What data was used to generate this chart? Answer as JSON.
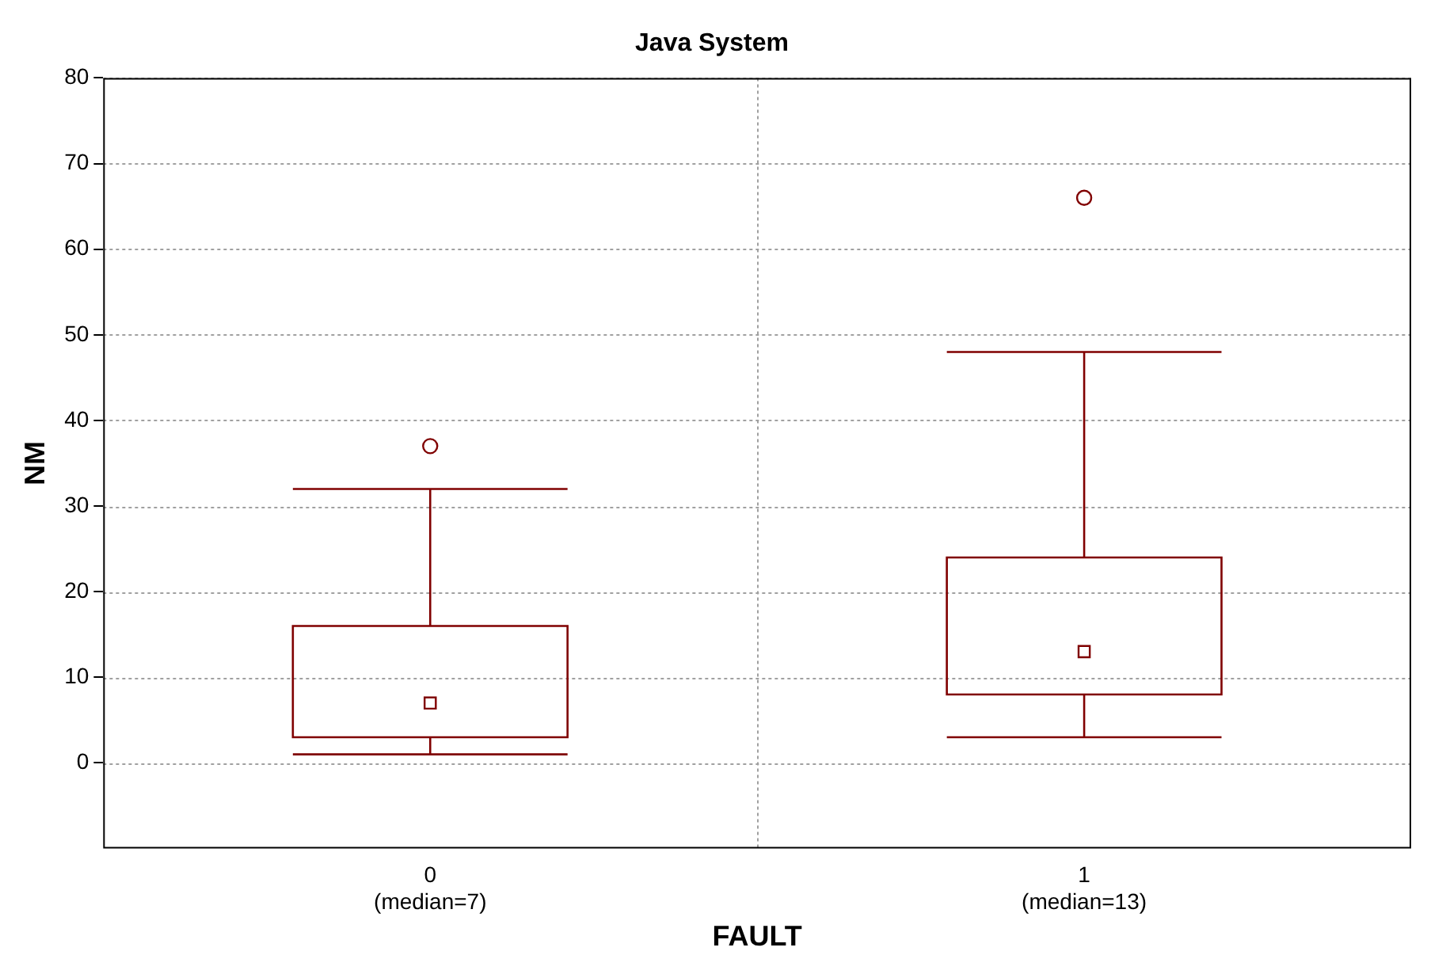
{
  "chart_data": {
    "type": "box",
    "title": "Java System",
    "xlabel": "FAULT",
    "ylabel": "NM",
    "categories": [
      "0\n(median=7)",
      "1\n(median=13)"
    ],
    "series": [
      {
        "color": "#800000",
        "boxes": [
          {
            "low": 1,
            "q1": 3,
            "median": 7,
            "q3": 16,
            "high": 32,
            "outliers": [
              37
            ]
          },
          {
            "low": 3,
            "q1": 8,
            "median": 13,
            "q3": 24,
            "high": 48,
            "outliers": [
              66
            ]
          }
        ]
      }
    ],
    "ylim": [
      -10,
      80
    ],
    "yticks": [
      0,
      10,
      20,
      30,
      40,
      50,
      60,
      70,
      80
    ],
    "grid": true,
    "legend": false
  }
}
